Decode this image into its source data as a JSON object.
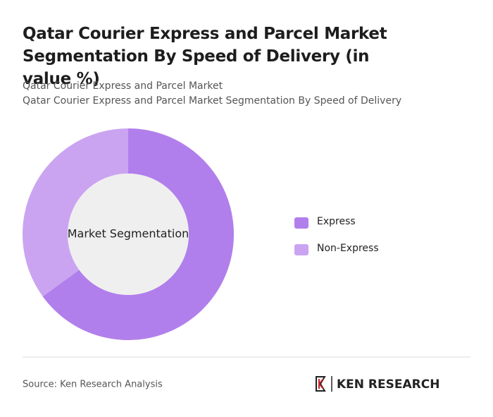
{
  "chart_data": {
    "type": "pie",
    "title": "Qatar Courier Express and Parcel Market Segmentation By Speed of Delivery (in value %)",
    "subtitles": [
      "Qatar Courier Express and Parcel Market",
      "Qatar Courier Express and Parcel Market Segmentation By Speed of Delivery"
    ],
    "center_label": "Market Segmentation",
    "categories": [
      "Express",
      "Non-Express"
    ],
    "values": [
      65,
      35
    ],
    "colors": [
      "#b17fec",
      "#caa4f1"
    ],
    "source": "Source: Ken Research Analysis",
    "logo": "KEN RESEARCH"
  }
}
